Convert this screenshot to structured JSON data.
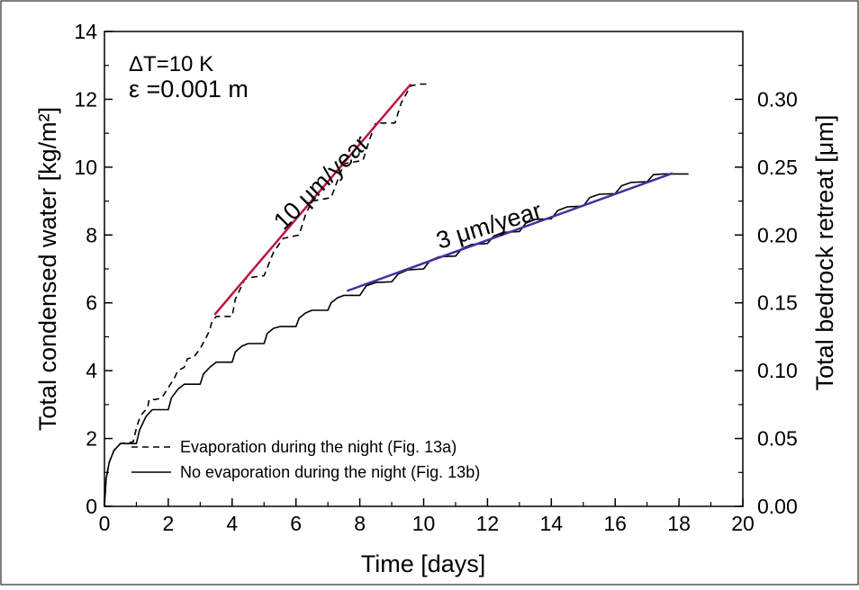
{
  "chart_data": {
    "type": "line",
    "xlabel": "Time [days]",
    "ylabel": "Total condensed water [kg/m²]",
    "y2label": "Total bedrock retreat [μm]",
    "xlim": [
      0,
      20
    ],
    "ylim": [
      0,
      14
    ],
    "y2lim": [
      0,
      0.35
    ],
    "x_ticks": [
      "0",
      "2",
      "4",
      "6",
      "8",
      "10",
      "12",
      "14",
      "16",
      "18",
      "20"
    ],
    "y_ticks": [
      "0",
      "2",
      "4",
      "6",
      "8",
      "10",
      "12",
      "14"
    ],
    "y2_ticks": [
      "0.00",
      "0.05",
      "0.10",
      "0.15",
      "0.20",
      "0.25",
      "0.30"
    ],
    "grid": false,
    "legend_position": "bottom-left",
    "annotations": {
      "delta_t": "ΔT=10 K",
      "epsilon": "ε =0.001 m",
      "rate_fast": "10 μm/year",
      "rate_slow": "3 μm/year"
    },
    "series": [
      {
        "name": "Evaporation during the night (Fig. 13a)",
        "style": "dashed",
        "color": "#000000",
        "x": [
          0,
          0.05,
          0.15,
          0.3,
          0.5,
          0.9,
          1.0,
          1.1,
          1.2,
          1.35,
          1.4,
          1.6,
          1.8,
          2.0,
          2.2,
          2.3,
          2.5,
          2.6,
          2.8,
          3.0,
          3.2,
          3.3,
          3.35,
          3.5,
          4.0,
          4.1,
          4.4,
          4.6,
          5.0,
          5.3,
          5.6,
          6.1,
          6.3,
          6.5,
          7.1,
          7.3,
          7.5,
          8.1,
          8.3,
          8.5,
          9.1,
          9.3,
          9.6,
          9.9,
          10.1
        ],
        "y": [
          0,
          0.8,
          1.3,
          1.65,
          1.85,
          1.9,
          2.3,
          2.6,
          2.75,
          2.9,
          3.15,
          3.15,
          3.2,
          3.5,
          3.8,
          4.0,
          4.1,
          4.35,
          4.4,
          4.65,
          5.0,
          5.2,
          5.4,
          5.6,
          5.6,
          6.1,
          6.7,
          6.75,
          6.8,
          7.5,
          7.9,
          8.0,
          8.6,
          9.0,
          9.1,
          9.6,
          10.1,
          10.2,
          10.8,
          11.3,
          11.3,
          11.9,
          12.4,
          12.45,
          12.45
        ]
      },
      {
        "name": "No evaporation during the night (Fig. 13b)",
        "style": "solid",
        "color": "#000000",
        "x": [
          0,
          0.05,
          0.15,
          0.3,
          0.5,
          1.0,
          1.1,
          1.3,
          1.5,
          2.0,
          2.1,
          2.3,
          2.5,
          3.0,
          3.1,
          3.3,
          3.5,
          4.0,
          4.1,
          4.3,
          4.5,
          5.0,
          5.1,
          5.3,
          5.5,
          6.0,
          6.1,
          6.3,
          6.5,
          7.0,
          7.1,
          7.3,
          7.5,
          8.0,
          8.2,
          8.5,
          9.0,
          9.2,
          9.5,
          10.0,
          10.2,
          10.5,
          11.0,
          11.2,
          11.5,
          12.0,
          12.2,
          12.5,
          13.0,
          13.2,
          13.5,
          14.0,
          14.2,
          14.5,
          15.0,
          15.2,
          15.5,
          16.0,
          16.2,
          16.5,
          17.0,
          17.2,
          17.5,
          18.0,
          18.3
        ],
        "y": [
          0,
          0.8,
          1.3,
          1.65,
          1.85,
          1.85,
          2.25,
          2.65,
          2.85,
          2.85,
          3.2,
          3.45,
          3.6,
          3.6,
          3.9,
          4.1,
          4.25,
          4.25,
          4.55,
          4.72,
          4.8,
          4.8,
          5.1,
          5.25,
          5.3,
          5.3,
          5.55,
          5.7,
          5.78,
          5.78,
          6.0,
          6.15,
          6.22,
          6.22,
          6.5,
          6.6,
          6.62,
          6.85,
          6.97,
          7.0,
          7.25,
          7.36,
          7.38,
          7.6,
          7.72,
          7.75,
          7.97,
          8.08,
          8.1,
          8.35,
          8.46,
          8.48,
          8.72,
          8.83,
          8.85,
          9.1,
          9.2,
          9.22,
          9.45,
          9.55,
          9.57,
          9.78,
          9.8,
          9.8,
          9.8
        ]
      },
      {
        "name": "",
        "style": "solid",
        "color": "#c0143c",
        "x": [
          3.45,
          9.6
        ],
        "y": [
          5.65,
          12.45
        ]
      },
      {
        "name": "",
        "style": "solid",
        "color": "#4b2c9e",
        "x": [
          7.6,
          17.8
        ],
        "y": [
          6.35,
          9.82
        ]
      }
    ]
  }
}
